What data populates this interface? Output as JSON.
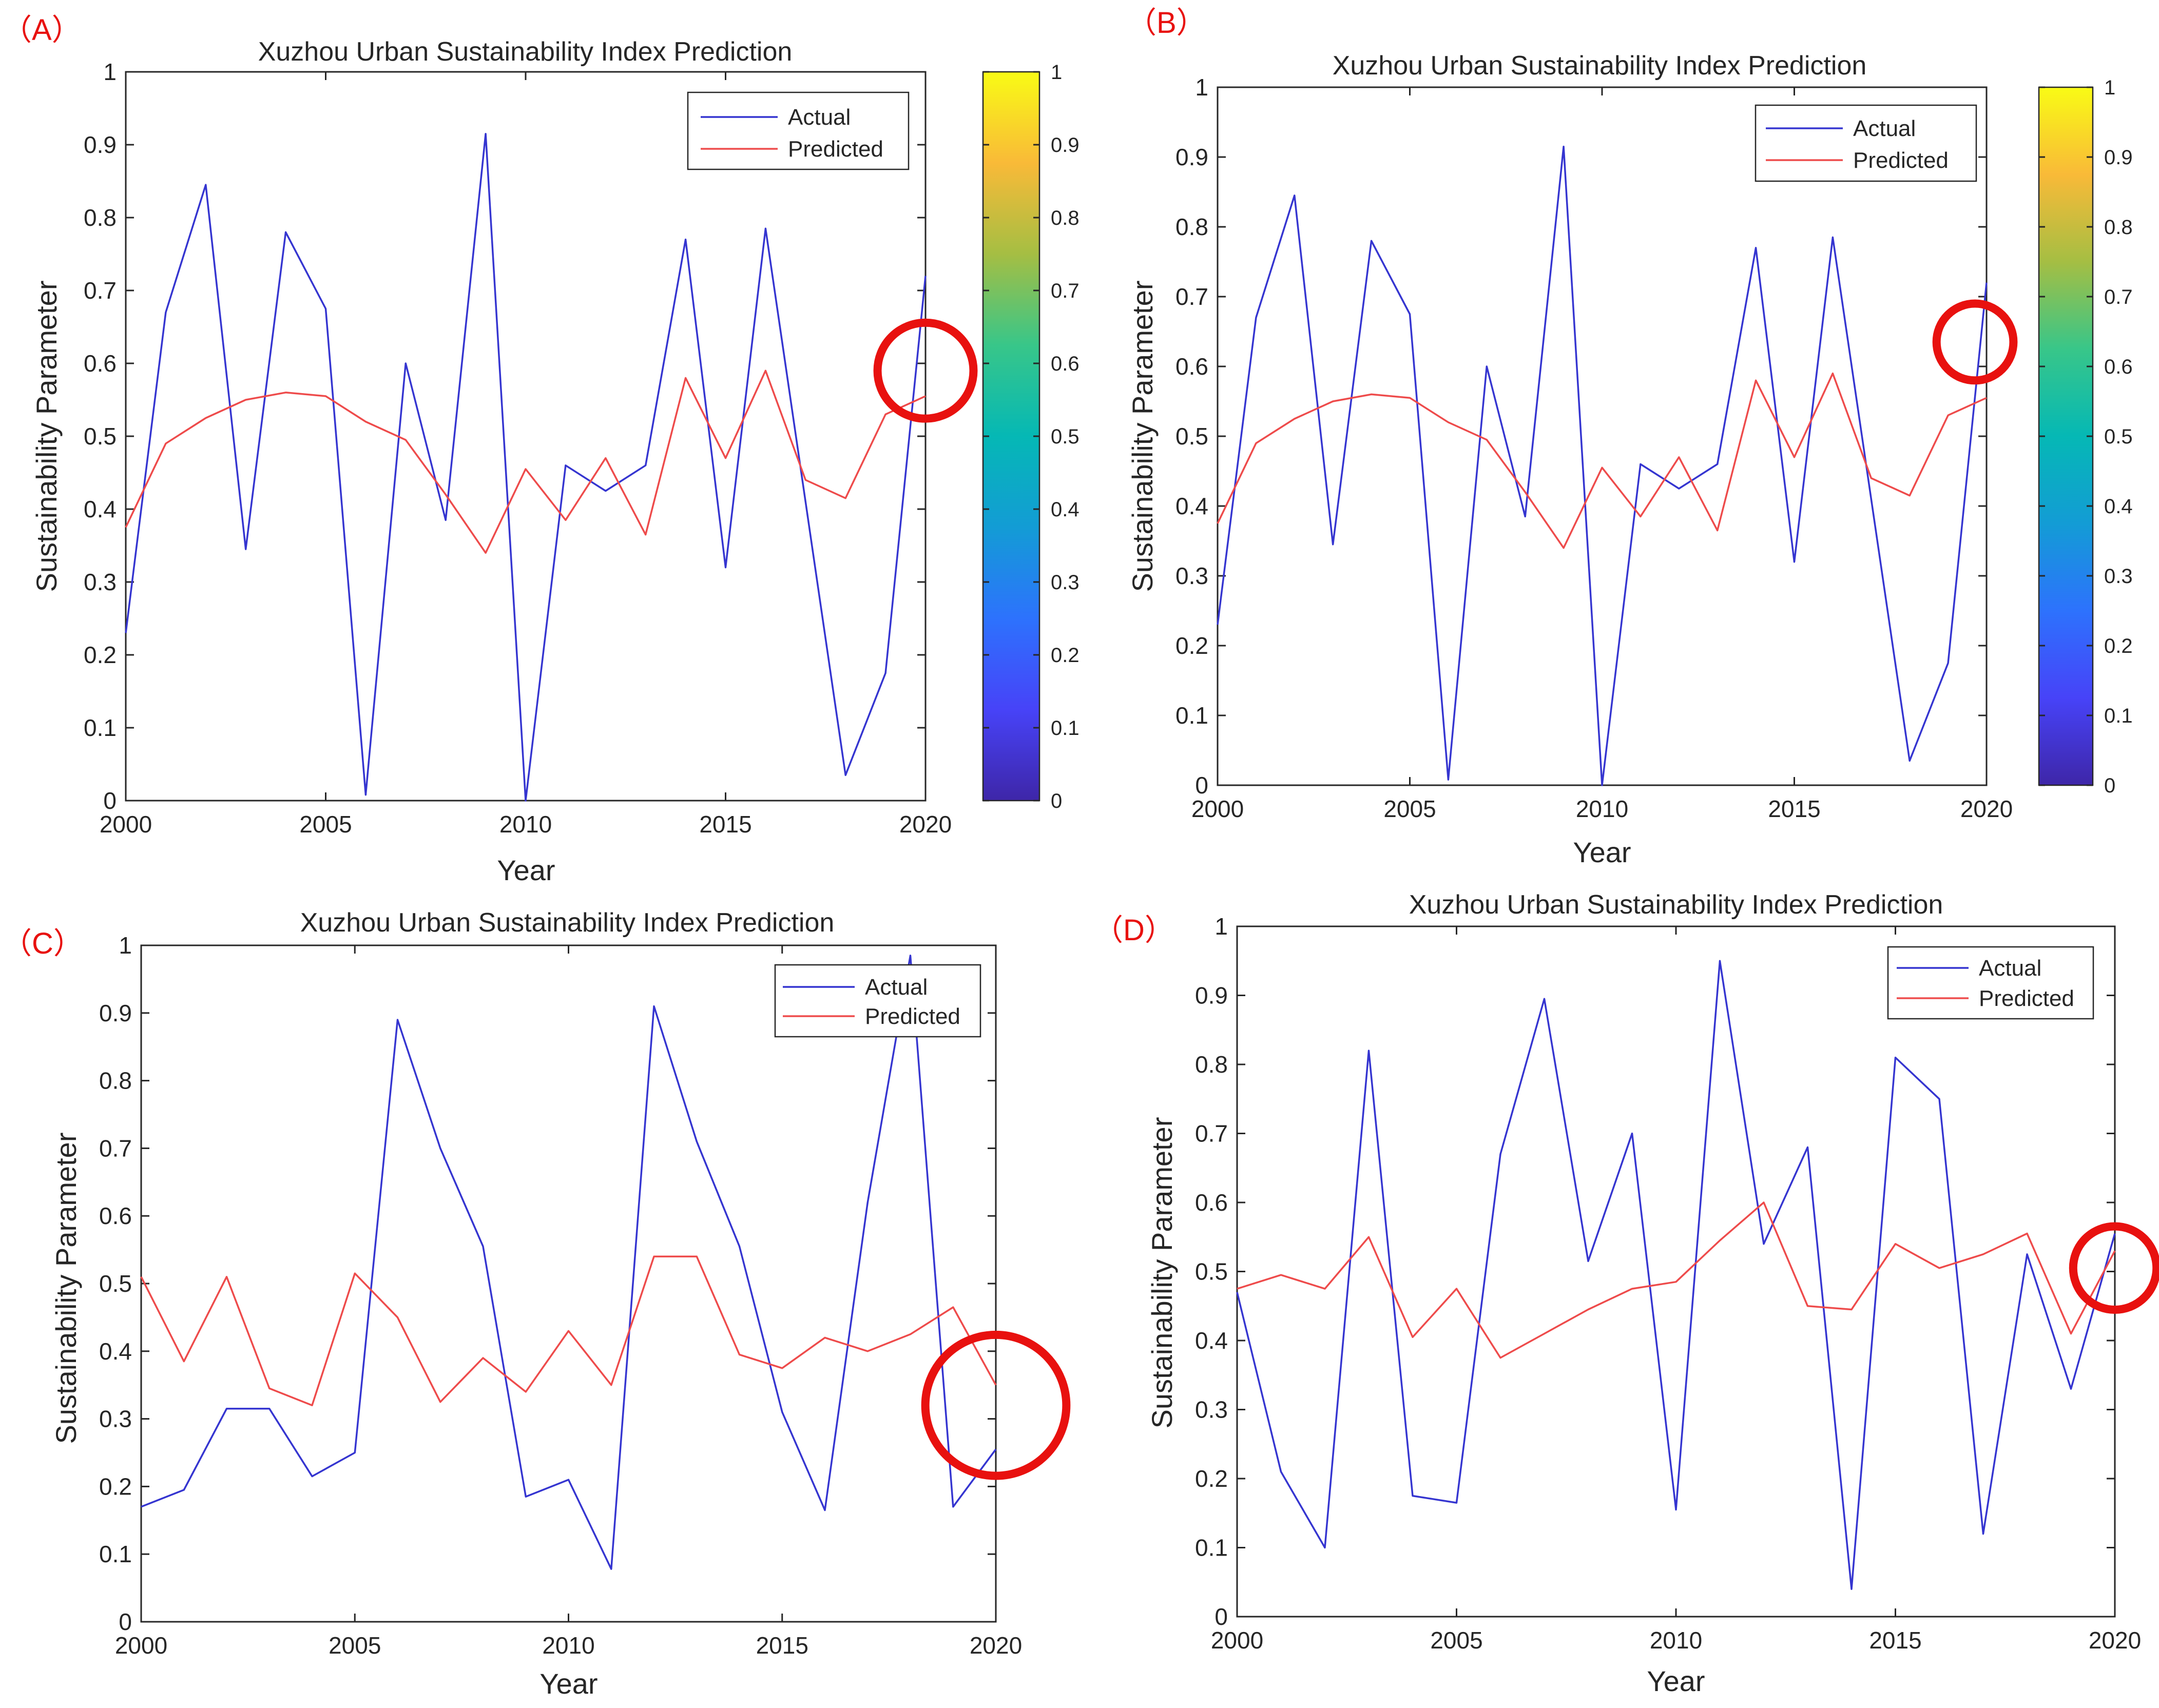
{
  "colors": {
    "actual": "#3535d0",
    "predicted": "#ee4b4b",
    "panel_label": "#e8110f",
    "highlight": "#e8110f"
  },
  "chart_data": [
    {
      "panel_label": "（A）",
      "type": "line",
      "title": "Xuzhou Urban Sustainability Index Prediction",
      "xlabel": "Year",
      "ylabel": "Sustainability Parameter",
      "xlim": [
        2000,
        2020
      ],
      "ylim": [
        0,
        1
      ],
      "x_ticks": [
        "2000",
        "2005",
        "2010",
        "2015",
        "2020"
      ],
      "y_ticks": [
        "0",
        "0.1",
        "0.2",
        "0.3",
        "0.4",
        "0.5",
        "0.6",
        "0.7",
        "0.8",
        "0.9",
        "1"
      ],
      "legend": [
        "Actual",
        "Predicted"
      ],
      "legend_position": "top-right",
      "colorbar": true,
      "colorbar_ticks": [
        "0",
        "0.1",
        "0.2",
        "0.3",
        "0.4",
        "0.5",
        "0.6",
        "0.7",
        "0.8",
        "0.9",
        "1"
      ],
      "highlight": {
        "x": 2020,
        "y": 0.59,
        "r_years": 1.2
      },
      "x": [
        2000,
        2001,
        2002,
        2003,
        2004,
        2005,
        2006,
        2007,
        2008,
        2009,
        2010,
        2011,
        2012,
        2013,
        2014,
        2015,
        2016,
        2017,
        2018,
        2019,
        2020
      ],
      "series": [
        {
          "name": "Actual",
          "values": [
            0.23,
            0.67,
            0.845,
            0.345,
            0.78,
            0.675,
            0.008,
            0.6,
            0.385,
            0.915,
            0.0,
            0.46,
            0.425,
            0.46,
            0.77,
            0.32,
            0.785,
            0.41,
            0.035,
            0.175,
            0.72
          ]
        },
        {
          "name": "Predicted",
          "values": [
            0.375,
            0.49,
            0.525,
            0.55,
            0.56,
            0.555,
            0.52,
            0.495,
            0.42,
            0.34,
            0.455,
            0.385,
            0.47,
            0.365,
            0.58,
            0.47,
            0.59,
            0.44,
            0.415,
            0.53,
            0.555
          ]
        }
      ]
    },
    {
      "panel_label": "（B）",
      "type": "line",
      "title": "Xuzhou Urban Sustainability Index Prediction",
      "xlabel": "Year",
      "ylabel": "Sustainability Parameter",
      "xlim": [
        2000,
        2020
      ],
      "ylim": [
        0,
        1
      ],
      "x_ticks": [
        "2000",
        "2005",
        "2010",
        "2015",
        "2020"
      ],
      "y_ticks": [
        "0",
        "0.1",
        "0.2",
        "0.3",
        "0.4",
        "0.5",
        "0.6",
        "0.7",
        "0.8",
        "0.9",
        "1"
      ],
      "legend": [
        "Actual",
        "Predicted"
      ],
      "legend_position": "top-right",
      "colorbar": true,
      "colorbar_ticks": [
        "0",
        "0.1",
        "0.2",
        "0.3",
        "0.4",
        "0.5",
        "0.6",
        "0.7",
        "0.8",
        "0.9",
        "1"
      ],
      "highlight": {
        "x": 2019.7,
        "y": 0.635,
        "r_years": 1.0
      },
      "x": [
        2000,
        2001,
        2002,
        2003,
        2004,
        2005,
        2006,
        2007,
        2008,
        2009,
        2010,
        2011,
        2012,
        2013,
        2014,
        2015,
        2016,
        2017,
        2018,
        2019,
        2020
      ],
      "series": [
        {
          "name": "Actual",
          "values": [
            0.23,
            0.67,
            0.845,
            0.345,
            0.78,
            0.675,
            0.008,
            0.6,
            0.385,
            0.915,
            0.0,
            0.46,
            0.425,
            0.46,
            0.77,
            0.32,
            0.785,
            0.41,
            0.035,
            0.175,
            0.72
          ]
        },
        {
          "name": "Predicted",
          "values": [
            0.375,
            0.49,
            0.525,
            0.55,
            0.56,
            0.555,
            0.52,
            0.495,
            0.42,
            0.34,
            0.455,
            0.385,
            0.47,
            0.365,
            0.58,
            0.47,
            0.59,
            0.44,
            0.415,
            0.53,
            0.555
          ]
        }
      ]
    },
    {
      "panel_label": "（C）",
      "type": "line",
      "title": "Xuzhou Urban Sustainability Index Prediction",
      "xlabel": "Year",
      "ylabel": "Sustainability Parameter",
      "xlim": [
        2000,
        2020
      ],
      "ylim": [
        0,
        1
      ],
      "x_ticks": [
        "2000",
        "2005",
        "2010",
        "2015",
        "2020"
      ],
      "y_ticks": [
        "0",
        "0.1",
        "0.2",
        "0.3",
        "0.4",
        "0.5",
        "0.6",
        "0.7",
        "0.8",
        "0.9",
        "1"
      ],
      "legend": [
        "Actual",
        "Predicted"
      ],
      "legend_position": "top-right",
      "colorbar": false,
      "highlight": {
        "x": 2020,
        "y": 0.32,
        "r_years": 1.65
      },
      "x": [
        2000,
        2001,
        2002,
        2003,
        2004,
        2005,
        2006,
        2007,
        2008,
        2009,
        2010,
        2011,
        2012,
        2013,
        2014,
        2015,
        2016,
        2017,
        2018,
        2019,
        2020
      ],
      "series": [
        {
          "name": "Actual",
          "values": [
            0.17,
            0.195,
            0.315,
            0.315,
            0.215,
            0.25,
            0.89,
            0.7,
            0.555,
            0.185,
            0.21,
            0.078,
            0.91,
            0.71,
            0.555,
            0.31,
            0.165,
            0.62,
            0.985,
            0.17,
            0.255
          ]
        },
        {
          "name": "Predicted",
          "values": [
            0.51,
            0.385,
            0.51,
            0.345,
            0.32,
            0.515,
            0.45,
            0.325,
            0.39,
            0.34,
            0.43,
            0.35,
            0.54,
            0.54,
            0.395,
            0.375,
            0.42,
            0.4,
            0.425,
            0.465,
            0.35
          ]
        }
      ]
    },
    {
      "panel_label": "（D）",
      "type": "line",
      "title": "Xuzhou Urban Sustainability Index Prediction",
      "xlabel": "Year",
      "ylabel": "Sustainability Parameter",
      "xlim": [
        2000,
        2020
      ],
      "ylim": [
        0,
        1
      ],
      "x_ticks": [
        "2000",
        "2005",
        "2010",
        "2015",
        "2020"
      ],
      "y_ticks": [
        "0",
        "0.1",
        "0.2",
        "0.3",
        "0.4",
        "0.5",
        "0.6",
        "0.7",
        "0.8",
        "0.9",
        "1"
      ],
      "legend": [
        "Actual",
        "Predicted"
      ],
      "legend_position": "top-right",
      "colorbar": false,
      "highlight": {
        "x": 2020,
        "y": 0.505,
        "r_years": 0.95
      },
      "x": [
        2000,
        2001,
        2002,
        2003,
        2004,
        2005,
        2006,
        2007,
        2008,
        2009,
        2010,
        2011,
        2012,
        2013,
        2014,
        2015,
        2016,
        2017,
        2018,
        2019,
        2020
      ],
      "series": [
        {
          "name": "Actual",
          "values": [
            0.47,
            0.21,
            0.1,
            0.82,
            0.175,
            0.165,
            0.67,
            0.895,
            0.515,
            0.7,
            0.155,
            0.95,
            0.54,
            0.68,
            0.04,
            0.81,
            0.75,
            0.12,
            0.525,
            0.33,
            0.555
          ]
        },
        {
          "name": "Predicted",
          "values": [
            0.475,
            0.495,
            0.475,
            0.55,
            0.405,
            0.475,
            0.375,
            0.41,
            0.445,
            0.475,
            0.485,
            0.545,
            0.6,
            0.45,
            0.445,
            0.54,
            0.505,
            0.525,
            0.555,
            0.41,
            0.53
          ]
        }
      ]
    }
  ]
}
